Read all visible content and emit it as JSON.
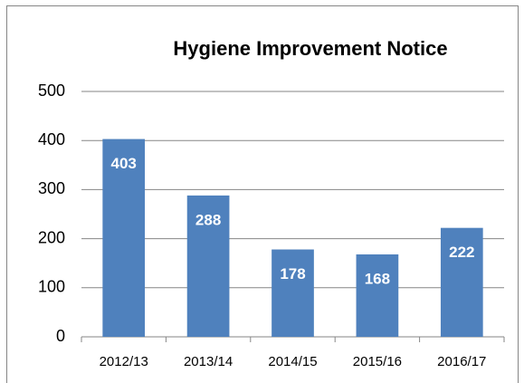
{
  "chart_data": {
    "type": "bar",
    "title": "Hygiene Improvement Notice",
    "categories": [
      "2012/13",
      "2013/14",
      "2014/15",
      "2015/16",
      "2016/17"
    ],
    "values": [
      403,
      288,
      178,
      168,
      222
    ],
    "color": "#4f81bd",
    "ylim": [
      0,
      500
    ],
    "yticks": [
      0,
      100,
      200,
      300,
      400,
      500
    ],
    "grid": true
  }
}
